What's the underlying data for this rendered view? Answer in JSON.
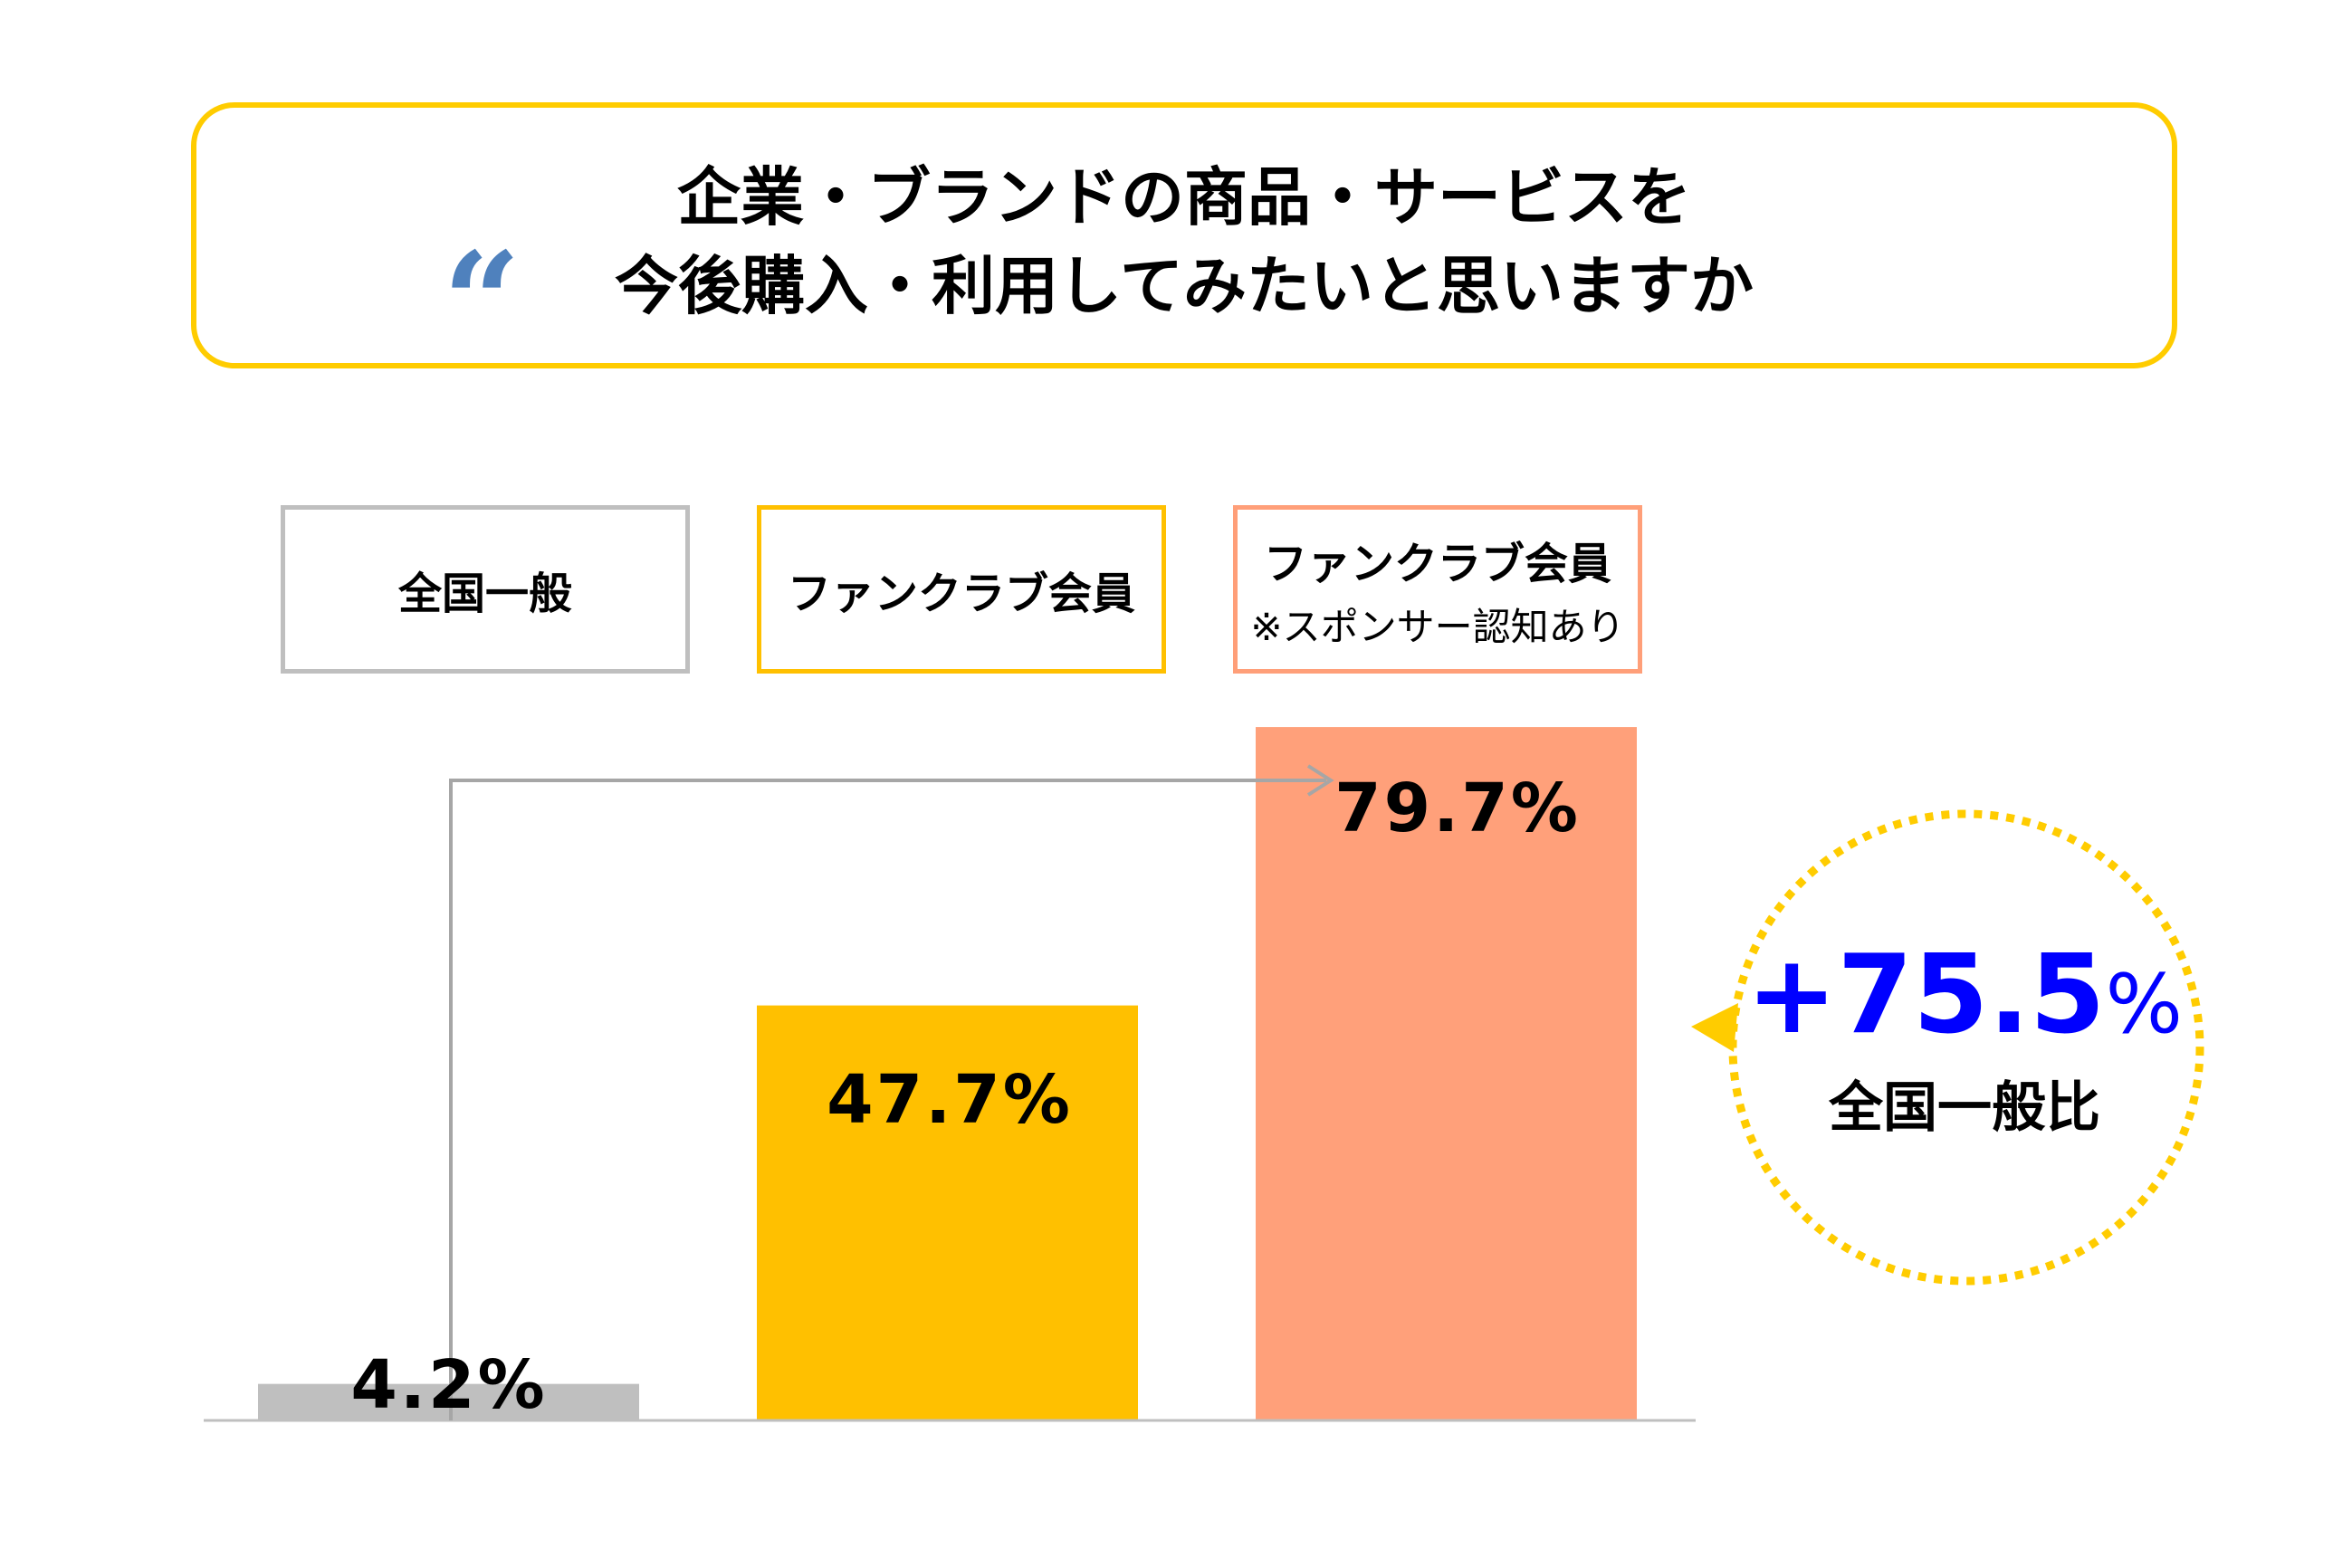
{
  "title": {
    "quote_icon": "left-double-quote",
    "line1": "企業・ブランドの商品・サービスを",
    "line2": "今後購入・利用してみたいと思いますか"
  },
  "legend": [
    {
      "label": "全国一般",
      "sub": "",
      "color": "#BFBFBF"
    },
    {
      "label": "ファンクラブ会員",
      "sub": "",
      "color": "#FFC000"
    },
    {
      "label": "ファンクラブ会員",
      "sub": "※スポンサー認知あり",
      "color": "#FF9F79"
    }
  ],
  "chart_data": {
    "type": "bar",
    "categories": [
      "全国一般",
      "ファンクラブ会員",
      "ファンクラブ会員 ※スポンサー認知あり"
    ],
    "values": [
      4.2,
      47.7,
      79.7
    ],
    "labels": [
      "4.2%",
      "47.7%",
      "79.7%"
    ],
    "colors": [
      "#BFBFBF",
      "#FFC000",
      "#FFA07A"
    ],
    "ylim": [
      0,
      100
    ],
    "grid": false,
    "title": "",
    "xlabel": "",
    "ylabel": ""
  },
  "callout": {
    "value": "+75.5",
    "unit": "%",
    "caption": "全国一般比",
    "value_color": "#0000FF",
    "ring_color": "#FFCC00"
  }
}
